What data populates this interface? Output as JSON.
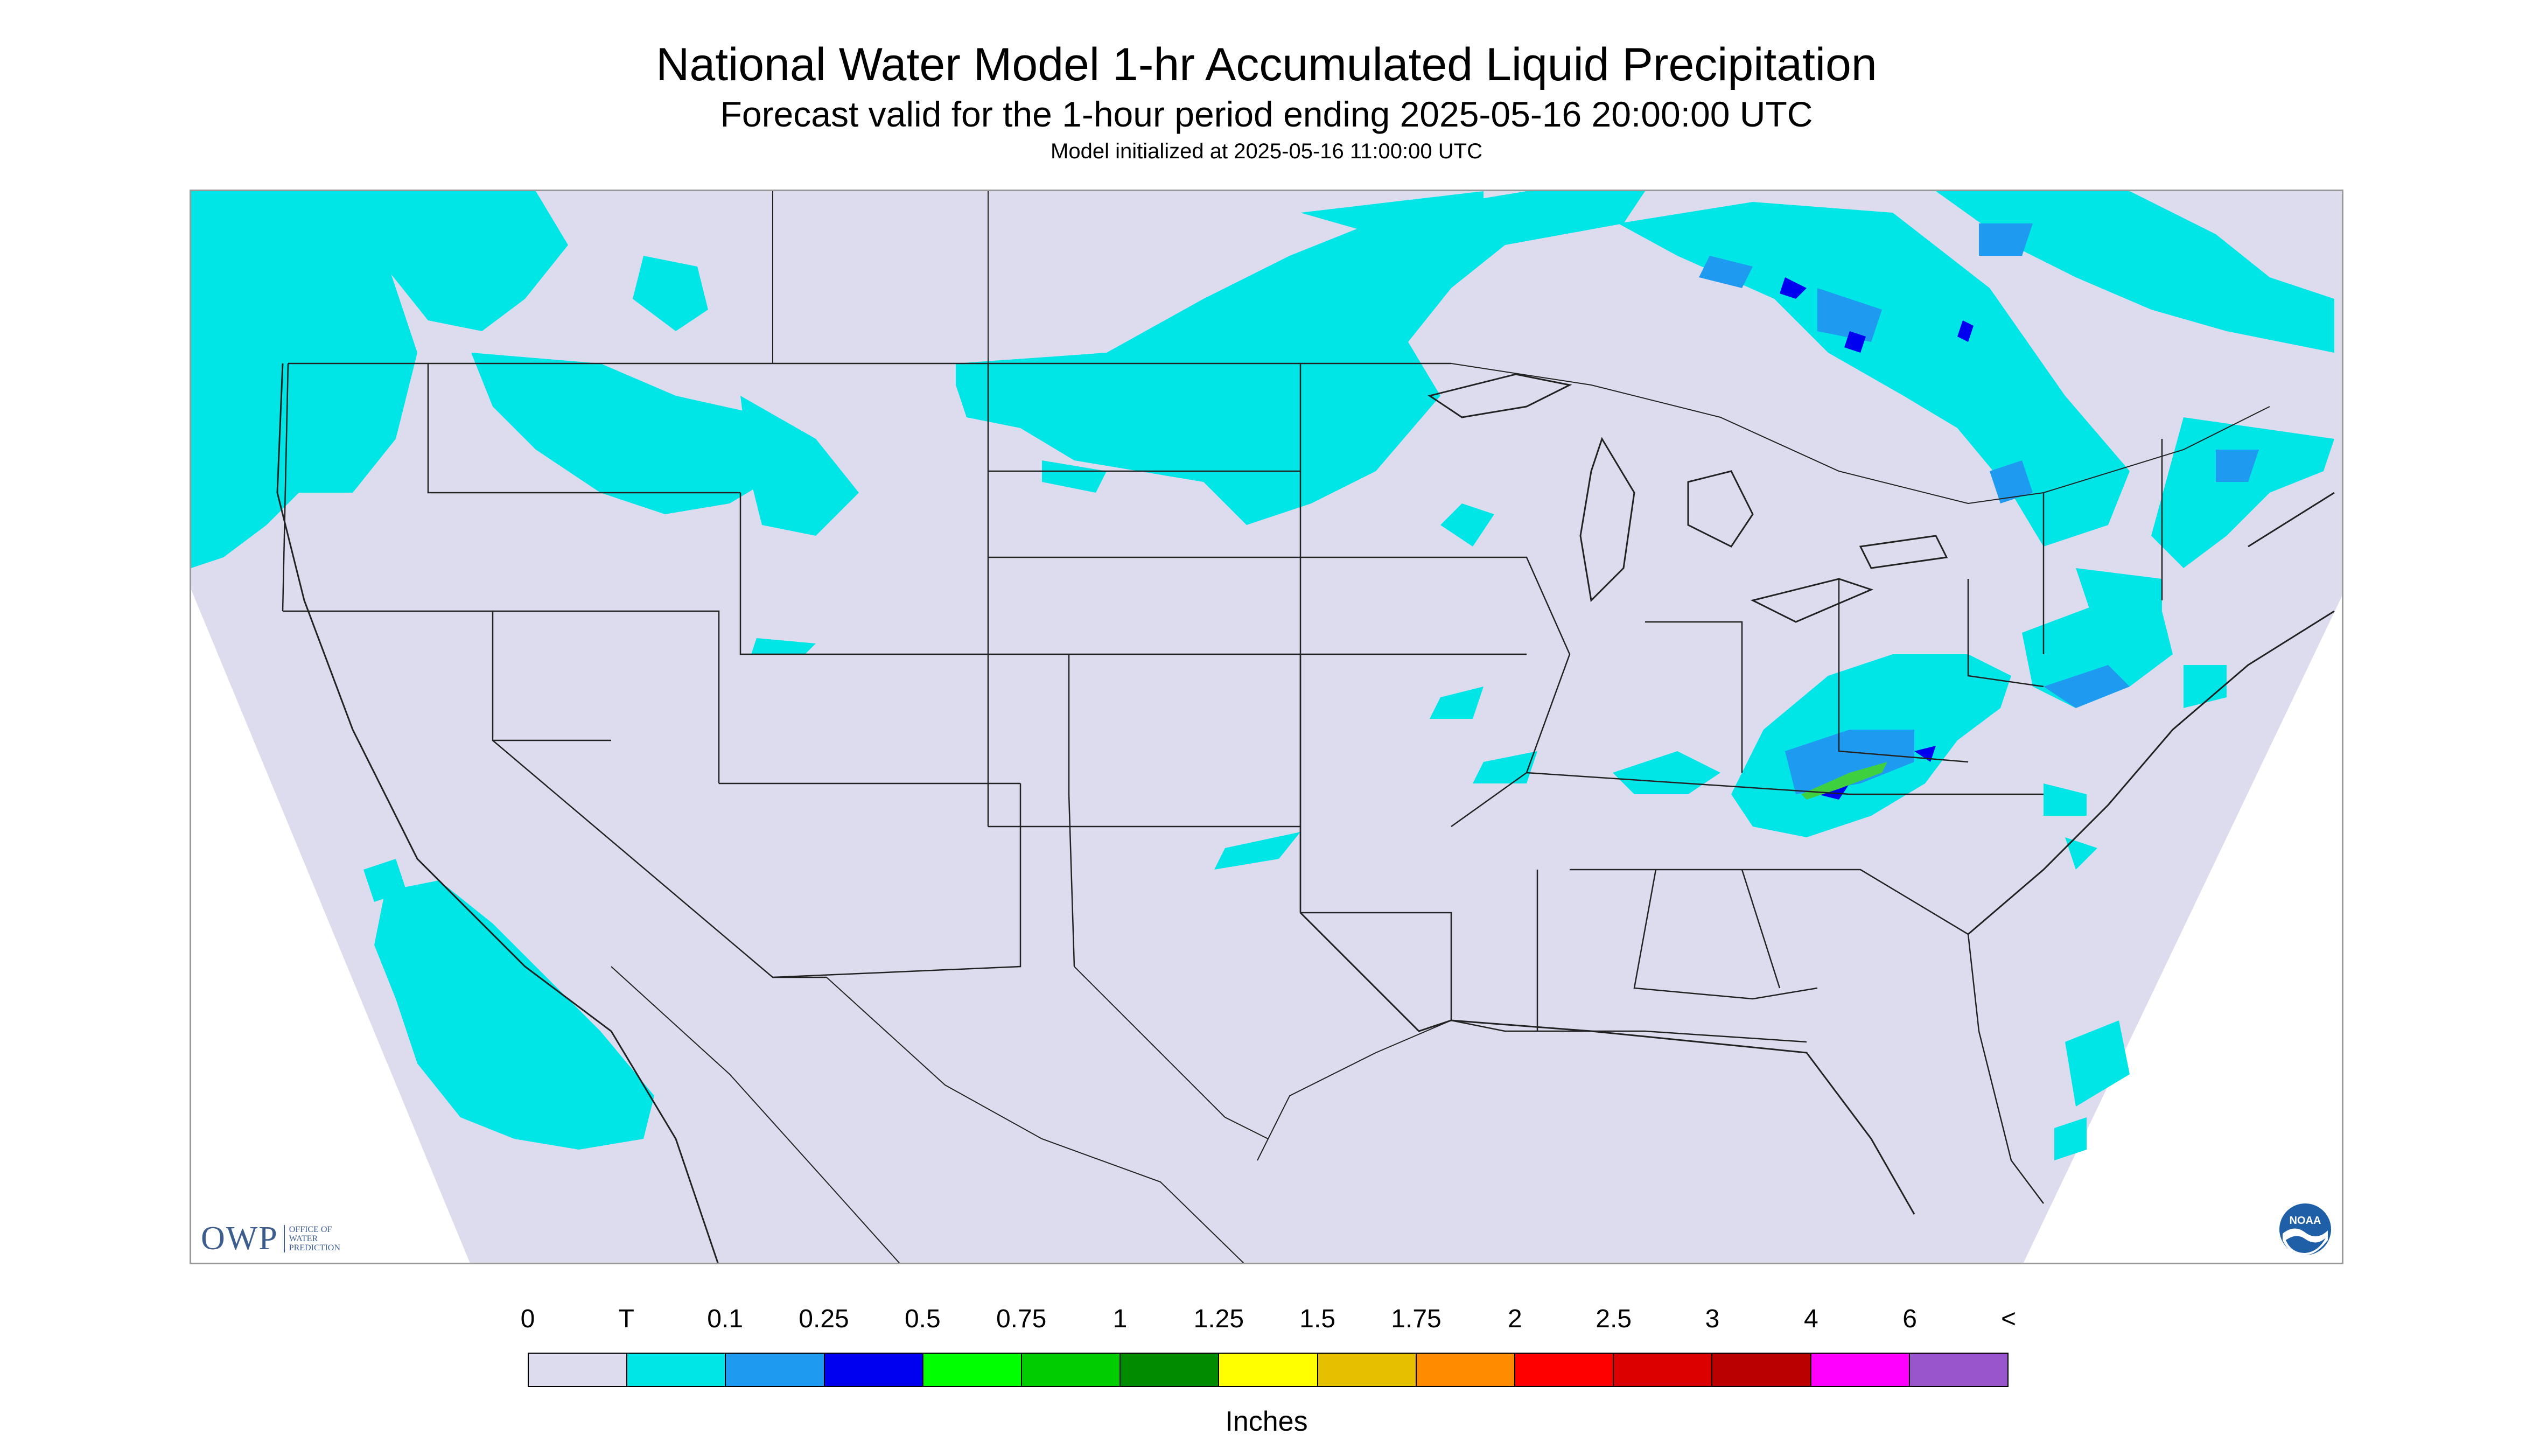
{
  "title": "National Water Model 1-hr Accumulated Liquid Precipitation",
  "subtitle": "Forecast valid for the 1-hour period ending 2025-05-16 20:00:00 UTC",
  "init_time": "Model initialized at 2025-05-16 11:00:00 UTC",
  "logos": {
    "owp": {
      "mark": "OWP",
      "text_lines": [
        "OFFICE OF",
        "WATER",
        "PREDICTION"
      ]
    },
    "noaa": {
      "text": "NOAA"
    }
  },
  "colors": {
    "no_data": "#ffffff",
    "background_zero": "#dcdcee",
    "trace": "#00e5e5",
    "light_blue": "#1e90ff",
    "dark_blue": "#0000f0",
    "green": "#3fd03f",
    "boundary": "#222222"
  },
  "legend": {
    "labels": [
      "0",
      "T",
      "0.1",
      "0.25",
      "0.5",
      "0.75",
      "1",
      "1.25",
      "1.5",
      "1.75",
      "2",
      "2.5",
      "3",
      "4",
      "6",
      "<"
    ],
    "colors": [
      "#dcdcee",
      "#00e5e5",
      "#1e9bf0",
      "#0000f0",
      "#00ff00",
      "#00cc00",
      "#008c00",
      "#ffff00",
      "#e6c000",
      "#ff8c00",
      "#ff0000",
      "#dd0000",
      "#bb0000",
      "#ff00ff",
      "#9955cc"
    ],
    "units": "Inches"
  }
}
